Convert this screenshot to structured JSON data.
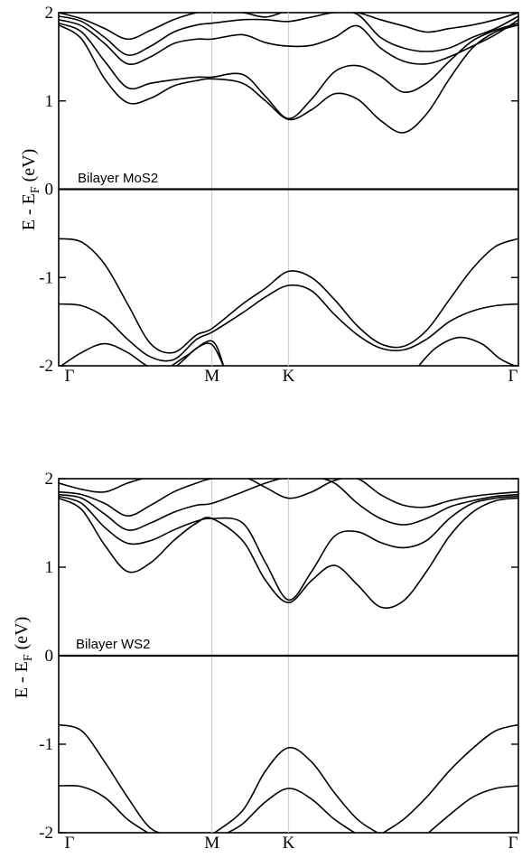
{
  "chart_data": [
    {
      "type": "line",
      "annotation": "Bilayer MoS2",
      "ylabel": "E - E_F  (eV)",
      "ylim": [
        -2,
        2
      ],
      "yticks": [
        2,
        1,
        0,
        -1,
        -2
      ],
      "kpoints": [
        "Γ",
        "M",
        "K",
        "Γ"
      ],
      "kpoint_positions": [
        0,
        0.3333,
        0.5,
        1.0
      ],
      "series": [
        {
          "x": [
            0,
            0.05,
            0.1,
            0.15,
            0.2,
            0.25,
            0.3,
            0.3333,
            0.4,
            0.45,
            0.5,
            0.55,
            0.6,
            0.65,
            0.7,
            0.75,
            0.8,
            0.85,
            0.9,
            0.95,
            1.0
          ],
          "y": [
            1.86,
            1.7,
            1.25,
            0.98,
            1.03,
            1.17,
            1.23,
            1.25,
            1.2,
            1.0,
            0.79,
            0.9,
            1.08,
            1.02,
            0.78,
            0.64,
            0.85,
            1.25,
            1.6,
            1.78,
            1.86
          ]
        },
        {
          "x": [
            0,
            0.05,
            0.1,
            0.15,
            0.2,
            0.25,
            0.3,
            0.3333,
            0.4,
            0.45,
            0.5,
            0.55,
            0.6,
            0.65,
            0.7,
            0.75,
            0.8,
            0.85,
            0.9,
            0.95,
            1.0
          ],
          "y": [
            1.88,
            1.78,
            1.45,
            1.15,
            1.2,
            1.24,
            1.27,
            1.27,
            1.3,
            1.05,
            0.8,
            1.02,
            1.33,
            1.4,
            1.28,
            1.1,
            1.2,
            1.45,
            1.68,
            1.8,
            1.88
          ]
        },
        {
          "x": [
            0,
            0.05,
            0.1,
            0.15,
            0.2,
            0.25,
            0.3,
            0.3333,
            0.4,
            0.45,
            0.5,
            0.55,
            0.6,
            0.65,
            0.7,
            0.75,
            0.8,
            0.85,
            0.9,
            0.95,
            1.0
          ],
          "y": [
            1.92,
            1.85,
            1.65,
            1.42,
            1.5,
            1.65,
            1.7,
            1.7,
            1.75,
            1.66,
            1.62,
            1.63,
            1.72,
            1.85,
            1.6,
            1.45,
            1.42,
            1.5,
            1.62,
            1.75,
            1.92
          ]
        },
        {
          "x": [
            0,
            0.05,
            0.1,
            0.15,
            0.2,
            0.25,
            0.3,
            0.3333,
            0.4,
            0.45,
            0.5,
            0.55,
            0.6,
            0.65,
            0.7,
            0.75,
            0.8,
            0.85,
            0.9,
            0.95,
            1.0
          ],
          "y": [
            1.96,
            1.9,
            1.72,
            1.52,
            1.62,
            1.78,
            1.86,
            1.88,
            1.92,
            1.92,
            1.9,
            1.95,
            2.0,
            1.98,
            1.72,
            1.6,
            1.56,
            1.6,
            1.72,
            1.82,
            1.96
          ]
        },
        {
          "x": [
            0,
            0.05,
            0.1,
            0.15,
            0.2,
            0.25,
            0.3,
            0.3333,
            0.4,
            0.45,
            0.5,
            0.55,
            0.6,
            0.65,
            0.7,
            0.75,
            0.8,
            0.85,
            0.9,
            0.95,
            1.0
          ],
          "y": [
            2.0,
            1.93,
            1.82,
            1.7,
            1.8,
            1.92,
            2.0,
            2.05,
            2.0,
            1.95,
            2.05,
            2.05,
            2.05,
            2.0,
            1.92,
            1.85,
            1.78,
            1.82,
            1.86,
            1.92,
            2.0
          ]
        },
        {
          "x": [
            0,
            0.05,
            0.1,
            0.15,
            0.2,
            0.25,
            0.3,
            0.3333,
            0.4,
            0.45,
            0.5,
            0.55,
            0.6,
            0.65,
            0.7,
            0.75,
            0.8,
            0.85,
            0.9,
            0.95,
            1.0
          ],
          "y": [
            -0.56,
            -0.6,
            -0.85,
            -1.3,
            -1.75,
            -1.85,
            -1.65,
            -1.58,
            -1.3,
            -1.12,
            -0.93,
            -1.0,
            -1.25,
            -1.55,
            -1.75,
            -1.78,
            -1.6,
            -1.25,
            -0.9,
            -0.65,
            -0.56
          ]
        },
        {
          "x": [
            0,
            0.05,
            0.1,
            0.15,
            0.2,
            0.25,
            0.3,
            0.3333,
            0.4,
            0.45,
            0.5,
            0.55,
            0.6,
            0.65,
            0.7,
            0.75,
            0.8,
            0.85,
            0.9,
            0.95,
            1.0
          ],
          "y": [
            -1.3,
            -1.32,
            -1.45,
            -1.7,
            -1.9,
            -1.93,
            -1.7,
            -1.62,
            -1.4,
            -1.22,
            -1.09,
            -1.15,
            -1.42,
            -1.65,
            -1.8,
            -1.82,
            -1.7,
            -1.5,
            -1.38,
            -1.32,
            -1.3
          ]
        },
        {
          "x": [
            0,
            0.05,
            0.1,
            0.15,
            0.2,
            0.25,
            0.3,
            0.3333,
            0.36
          ],
          "y": [
            -2.05,
            -1.85,
            -1.75,
            -1.85,
            -2.05,
            -2.05,
            -1.8,
            -1.76,
            -2.05
          ]
        },
        {
          "x": [
            0.24,
            0.28,
            0.3333,
            0.36
          ],
          "y": [
            -2.05,
            -1.88,
            -1.72,
            -2.05
          ]
        },
        {
          "x": [
            0.78,
            0.82,
            0.87,
            0.92,
            0.96,
            1.0
          ],
          "y": [
            -2.05,
            -1.8,
            -1.68,
            -1.75,
            -1.92,
            -2.05
          ]
        }
      ]
    },
    {
      "type": "line",
      "annotation": "Bilayer WS2",
      "ylabel": "E - E_F  (eV)",
      "ylim": [
        -2,
        2
      ],
      "yticks": [
        2,
        1,
        0,
        -1,
        -2
      ],
      "kpoints": [
        "Γ",
        "M",
        "K",
        "Γ"
      ],
      "kpoint_positions": [
        0,
        0.3333,
        0.5,
        1.0
      ],
      "series": [
        {
          "x": [
            0,
            0.05,
            0.1,
            0.15,
            0.2,
            0.25,
            0.3,
            0.3333,
            0.4,
            0.45,
            0.5,
            0.55,
            0.6,
            0.65,
            0.7,
            0.75,
            0.8,
            0.85,
            0.9,
            0.95,
            1.0
          ],
          "y": [
            1.78,
            1.65,
            1.25,
            0.95,
            1.05,
            1.3,
            1.5,
            1.55,
            1.3,
            0.85,
            0.6,
            0.85,
            1.02,
            0.8,
            0.55,
            0.62,
            0.95,
            1.35,
            1.62,
            1.75,
            1.78
          ]
        },
        {
          "x": [
            0,
            0.05,
            0.1,
            0.15,
            0.2,
            0.25,
            0.3,
            0.3333,
            0.4,
            0.45,
            0.5,
            0.55,
            0.6,
            0.65,
            0.7,
            0.75,
            0.8,
            0.85,
            0.9,
            0.95,
            1.0
          ],
          "y": [
            1.8,
            1.72,
            1.45,
            1.27,
            1.3,
            1.42,
            1.52,
            1.55,
            1.5,
            1.05,
            0.63,
            0.95,
            1.35,
            1.4,
            1.28,
            1.22,
            1.3,
            1.55,
            1.72,
            1.78,
            1.8
          ]
        },
        {
          "x": [
            0,
            0.05,
            0.1,
            0.15,
            0.2,
            0.25,
            0.3,
            0.3333,
            0.4,
            0.45,
            0.5,
            0.55,
            0.6,
            0.65,
            0.7,
            0.75,
            0.8,
            0.85,
            0.9,
            0.95,
            1.0
          ],
          "y": [
            1.82,
            1.78,
            1.6,
            1.42,
            1.5,
            1.62,
            1.7,
            1.72,
            1.85,
            1.95,
            2.05,
            2.05,
            1.95,
            1.72,
            1.55,
            1.48,
            1.55,
            1.68,
            1.75,
            1.8,
            1.82
          ]
        },
        {
          "x": [
            0,
            0.05,
            0.1,
            0.15,
            0.2,
            0.25,
            0.3,
            0.3333,
            0.4,
            0.45,
            0.5,
            0.55,
            0.6,
            0.65,
            0.7,
            0.75,
            0.8,
            0.85,
            0.9,
            0.95,
            1.0
          ],
          "y": [
            1.85,
            1.82,
            1.72,
            1.58,
            1.7,
            1.85,
            1.95,
            2.0,
            2.05,
            1.9,
            1.78,
            1.85,
            1.98,
            2.0,
            1.82,
            1.7,
            1.68,
            1.75,
            1.8,
            1.83,
            1.85
          ]
        },
        {
          "x": [
            0,
            0.05,
            0.1,
            0.15,
            0.2,
            0.25,
            0.3
          ],
          "y": [
            1.95,
            1.88,
            1.85,
            1.95,
            2.05,
            2.05,
            2.05
          ]
        },
        {
          "x": [
            0,
            0.05,
            0.1,
            0.15,
            0.2,
            0.25,
            0.3,
            0.3333
          ],
          "y": [
            -0.78,
            -0.85,
            -1.2,
            -1.6,
            -1.95,
            -2.1,
            -2.1,
            -2.05
          ]
        },
        {
          "x": [
            0,
            0.05,
            0.1,
            0.15,
            0.2
          ],
          "y": [
            -1.47,
            -1.48,
            -1.6,
            -1.85,
            -2.05
          ]
        },
        {
          "x": [
            0.3333,
            0.4,
            0.45,
            0.5,
            0.55,
            0.6,
            0.65,
            0.7
          ],
          "y": [
            -2.05,
            -1.75,
            -1.3,
            -1.04,
            -1.2,
            -1.55,
            -1.85,
            -2.05
          ]
        },
        {
          "x": [
            0.36,
            0.4,
            0.45,
            0.5,
            0.55,
            0.6,
            0.65
          ],
          "y": [
            -2.05,
            -1.9,
            -1.65,
            -1.5,
            -1.62,
            -1.85,
            -2.05
          ]
        },
        {
          "x": [
            0.7,
            0.75,
            0.8,
            0.85,
            0.9,
            0.95,
            1.0
          ],
          "y": [
            -2.05,
            -1.85,
            -1.6,
            -1.3,
            -1.05,
            -0.85,
            -0.78
          ]
        },
        {
          "x": [
            0.8,
            0.85,
            0.9,
            0.95,
            1.0
          ],
          "y": [
            -2.05,
            -1.8,
            -1.6,
            -1.5,
            -1.47
          ]
        }
      ]
    }
  ]
}
